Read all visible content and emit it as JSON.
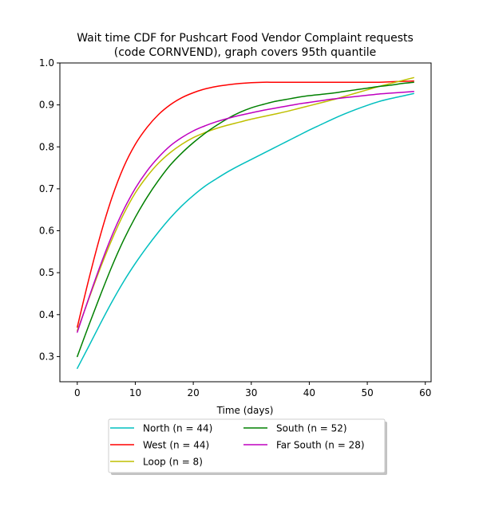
{
  "chart_data": {
    "type": "line",
    "title_line1": "Wait time CDF for Pushcart Food Vendor Complaint  requests",
    "title_line2": "(code CORNVEND), graph covers 95th quantile",
    "xlabel": "Time (days)",
    "ylabel": "",
    "xlim": [
      -3,
      61
    ],
    "ylim": [
      0.24,
      1.0
    ],
    "xticks": [
      "0",
      "10",
      "20",
      "30",
      "40",
      "50",
      "60"
    ],
    "yticks": [
      "0.3",
      "0.4",
      "0.5",
      "0.6",
      "0.7",
      "0.8",
      "0.9",
      "1.0"
    ],
    "xtick_values": [
      0,
      10,
      20,
      30,
      40,
      50,
      60
    ],
    "ytick_values": [
      0.3,
      0.4,
      0.5,
      0.6,
      0.7,
      0.8,
      0.9,
      1.0
    ],
    "grid": false,
    "legend_position": "bottom-center",
    "x": [
      0,
      2,
      4,
      6,
      8,
      10,
      12,
      14,
      16,
      18,
      20,
      22,
      24,
      26,
      28,
      30,
      32,
      34,
      36,
      38,
      40,
      42,
      44,
      46,
      48,
      50,
      52,
      54,
      56,
      58
    ],
    "series": [
      {
        "name": "North (n = 44)",
        "color": "#00bfbf",
        "values": [
          0.272,
          0.325,
          0.379,
          0.431,
          0.479,
          0.522,
          0.561,
          0.597,
          0.63,
          0.659,
          0.684,
          0.706,
          0.724,
          0.741,
          0.756,
          0.77,
          0.784,
          0.798,
          0.812,
          0.826,
          0.84,
          0.853,
          0.866,
          0.878,
          0.889,
          0.899,
          0.908,
          0.915,
          0.921,
          0.927
        ]
      },
      {
        "name": "West (n = 44)",
        "color": "#ff0000",
        "values": [
          0.37,
          0.485,
          0.59,
          0.68,
          0.752,
          0.806,
          0.846,
          0.877,
          0.9,
          0.917,
          0.929,
          0.938,
          0.944,
          0.948,
          0.951,
          0.953,
          0.954,
          0.954,
          0.954,
          0.954,
          0.954,
          0.954,
          0.954,
          0.954,
          0.954,
          0.954,
          0.954,
          0.955,
          0.956,
          0.957
        ]
      },
      {
        "name": "Loop (n = 8)",
        "color": "#bfbf00",
        "values": [
          0.362,
          0.438,
          0.512,
          0.58,
          0.64,
          0.69,
          0.729,
          0.761,
          0.786,
          0.806,
          0.822,
          0.834,
          0.844,
          0.852,
          0.859,
          0.866,
          0.872,
          0.878,
          0.884,
          0.891,
          0.898,
          0.905,
          0.912,
          0.92,
          0.928,
          0.936,
          0.944,
          0.951,
          0.958,
          0.965
        ]
      },
      {
        "name": "South (n = 52)",
        "color": "#008000",
        "values": [
          0.3,
          0.375,
          0.447,
          0.516,
          0.578,
          0.632,
          0.679,
          0.72,
          0.756,
          0.785,
          0.81,
          0.832,
          0.851,
          0.868,
          0.882,
          0.893,
          0.901,
          0.908,
          0.913,
          0.918,
          0.922,
          0.925,
          0.928,
          0.932,
          0.936,
          0.94,
          0.944,
          0.947,
          0.951,
          0.954
        ]
      },
      {
        "name": "Far South (n = 28)",
        "color": "#bf00bf",
        "values": [
          0.358,
          0.44,
          0.518,
          0.589,
          0.65,
          0.701,
          0.742,
          0.775,
          0.802,
          0.822,
          0.838,
          0.85,
          0.86,
          0.868,
          0.875,
          0.881,
          0.887,
          0.892,
          0.897,
          0.902,
          0.906,
          0.91,
          0.914,
          0.917,
          0.92,
          0.923,
          0.926,
          0.928,
          0.93,
          0.932
        ]
      }
    ]
  }
}
